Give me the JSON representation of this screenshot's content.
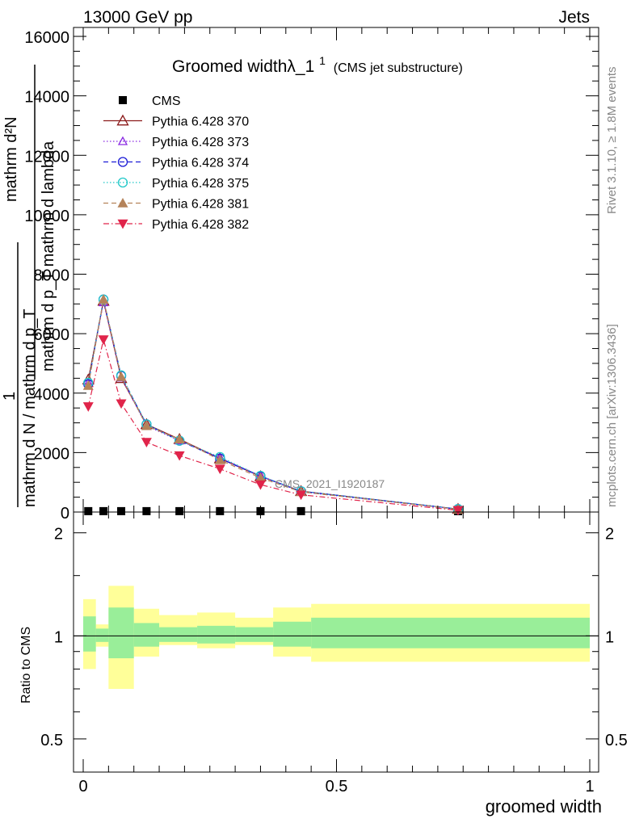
{
  "header": {
    "energy_label": "13000 GeV pp",
    "process_label": "Jets"
  },
  "plot": {
    "title_main": "Groomed widthλ_1",
    "title_sup": "1",
    "title_sub": "(CMS jet substructure)",
    "ylabel_top_numerator": "mathrm d²N",
    "ylabel_top_denominator": "mathrm d p_T mathrm d lambda",
    "ylabel_outer_numerator": "1",
    "ylabel_outer_denominator": "mathrm d N / mathrm d p_T",
    "analysis_watermark": "CMS_2021_I1920187",
    "ratio_ylabel": "Ratio to CMS",
    "xlabel": "groomed width",
    "side_label_right_1": "Rivet 3.1.10, ≥ 1.8M events",
    "side_label_right_2": "mcplots.cern.ch [arXiv:1306.3436]"
  },
  "legend": {
    "entries": [
      {
        "label": "CMS",
        "color": "#000000",
        "marker": "square",
        "dash": "none"
      },
      {
        "label": "Pythia 6.428 370",
        "color": "#8b1a1a",
        "marker": "triangle-open",
        "dash": "solid"
      },
      {
        "label": "Pythia 6.428 373",
        "color": "#8a2be2",
        "marker": "triangle-open-small",
        "dash": "dotted"
      },
      {
        "label": "Pythia 6.428 374",
        "color": "#1c1cd6",
        "marker": "circle-open",
        "dash": "dashed"
      },
      {
        "label": "Pythia 6.428 375",
        "color": "#20c8c8",
        "marker": "circle-open",
        "dash": "dotted"
      },
      {
        "label": "Pythia 6.428 381",
        "color": "#b5835a",
        "marker": "triangle-filled",
        "dash": "dashed"
      },
      {
        "label": "Pythia 6.428 382",
        "color": "#e0244a",
        "marker": "triangle-down-filled",
        "dash": "dashdot"
      }
    ]
  },
  "chart_data": [
    {
      "type": "line",
      "title": "Groomed widthλ_1",
      "xlabel": "groomed width",
      "ylabel": "",
      "xlim": [
        0,
        1
      ],
      "ylim": [
        0,
        16300
      ],
      "y_ticks": [
        0,
        2000,
        4000,
        6000,
        8000,
        10000,
        12000,
        14000,
        16000
      ],
      "x_ticks": [
        0,
        0.5,
        1
      ],
      "x_tick_labels": [
        "0",
        "0.5",
        "1"
      ],
      "x": [
        0.01,
        0.04,
        0.075,
        0.125,
        0.19,
        0.27,
        0.35,
        0.43,
        0.74
      ],
      "series": [
        {
          "name": "CMS",
          "values": [
            30,
            30,
            30,
            30,
            30,
            30,
            30,
            30,
            30
          ]
        },
        {
          "name": "Pythia 6.428 370",
          "values": [
            4450,
            7100,
            4500,
            2950,
            2450,
            1800,
            1200,
            700,
            100
          ]
        },
        {
          "name": "Pythia 6.428 373",
          "values": [
            4350,
            7050,
            4520,
            2900,
            2400,
            1820,
            1220,
            680,
            90
          ]
        },
        {
          "name": "Pythia 6.428 374",
          "values": [
            4300,
            7150,
            4580,
            2950,
            2400,
            1800,
            1200,
            700,
            100
          ]
        },
        {
          "name": "Pythia 6.428 375",
          "values": [
            4350,
            7150,
            4600,
            2950,
            2400,
            1850,
            1220,
            700,
            100
          ]
        },
        {
          "name": "Pythia 6.428 381",
          "values": [
            4250,
            7150,
            4550,
            2900,
            2450,
            1750,
            1150,
            680,
            90
          ]
        },
        {
          "name": "Pythia 6.428 382",
          "values": [
            3550,
            5800,
            3650,
            2350,
            1900,
            1450,
            920,
            580,
            60
          ]
        }
      ]
    },
    {
      "type": "area",
      "title": "",
      "xlabel": "groomed width",
      "ylabel": "Ratio to CMS",
      "xlim": [
        0,
        1
      ],
      "ylim": [
        0.4,
        2.3
      ],
      "y_ticks": [
        0.5,
        1,
        2
      ],
      "y_tick_labels": [
        "0.5",
        "1",
        "2"
      ],
      "bins": [
        [
          0.0,
          0.025
        ],
        [
          0.025,
          0.05
        ],
        [
          0.05,
          0.1
        ],
        [
          0.1,
          0.15
        ],
        [
          0.15,
          0.225
        ],
        [
          0.225,
          0.3
        ],
        [
          0.3,
          0.375
        ],
        [
          0.375,
          0.45
        ],
        [
          0.45,
          1.0
        ]
      ],
      "series": [
        {
          "name": "stat",
          "lower": [
            0.9,
            0.96,
            0.86,
            0.93,
            0.96,
            0.95,
            0.96,
            0.93,
            0.92
          ],
          "upper": [
            1.14,
            1.05,
            1.21,
            1.09,
            1.06,
            1.07,
            1.06,
            1.1,
            1.13
          ]
        },
        {
          "name": "total",
          "lower": [
            0.8,
            0.93,
            0.7,
            0.87,
            0.94,
            0.92,
            0.94,
            0.87,
            0.84
          ],
          "upper": [
            1.28,
            1.08,
            1.4,
            1.2,
            1.15,
            1.17,
            1.13,
            1.21,
            1.24
          ]
        }
      ],
      "reference_line": 1
    }
  ]
}
